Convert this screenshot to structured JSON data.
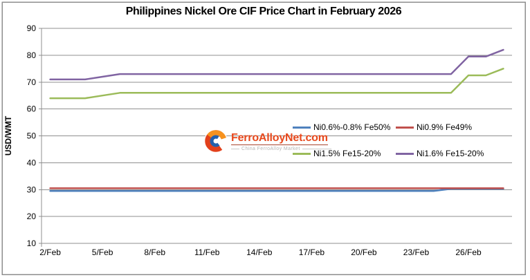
{
  "chart_data": {
    "type": "line",
    "title": "Philippines Nickel Ore CIF Price Chart in February 2026",
    "ylabel": "USD/WMT",
    "ylim": [
      10,
      90
    ],
    "y_ticks": [
      90,
      80,
      70,
      60,
      50,
      40,
      30,
      20,
      10
    ],
    "x_tick_labels": [
      "2/Feb",
      "5/Feb",
      "8/Feb",
      "11/Feb",
      "14/Feb",
      "17/Feb",
      "20/Feb",
      "23/Feb",
      "26/Feb"
    ],
    "x_categories": [
      "2/Feb",
      "3/Feb",
      "4/Feb",
      "5/Feb",
      "6/Feb",
      "7/Feb",
      "8/Feb",
      "9/Feb",
      "10/Feb",
      "11/Feb",
      "12/Feb",
      "13/Feb",
      "14/Feb",
      "15/Feb",
      "16/Feb",
      "17/Feb",
      "18/Feb",
      "19/Feb",
      "20/Feb",
      "21/Feb",
      "22/Feb",
      "23/Feb",
      "24/Feb",
      "25/Feb",
      "26/Feb",
      "27/Feb",
      "28/Feb"
    ],
    "grid": true,
    "grid_color": "#8F8F8F",
    "legend_position": "center-right",
    "series": [
      {
        "name": "Ni0.6%-0.8% Fe50%",
        "color": "#4F81BD",
        "values": [
          29.5,
          29.5,
          29.5,
          29.5,
          29.5,
          29.5,
          29.5,
          29.5,
          29.5,
          29.5,
          29.5,
          29.5,
          29.5,
          29.5,
          29.5,
          29.5,
          29.5,
          29.5,
          29.5,
          29.5,
          29.5,
          29.5,
          29.5,
          30.3,
          30.3,
          30.3,
          30.3
        ]
      },
      {
        "name": "Ni0.9% Fe49%",
        "color": "#C0504D",
        "values": [
          30.5,
          30.5,
          30.5,
          30.5,
          30.5,
          30.5,
          30.5,
          30.5,
          30.5,
          30.5,
          30.5,
          30.5,
          30.5,
          30.5,
          30.5,
          30.5,
          30.5,
          30.5,
          30.5,
          30.5,
          30.5,
          30.5,
          30.5,
          30.5,
          30.5,
          30.5,
          30.5
        ]
      },
      {
        "name": "Ni1.5% Fe15-20%",
        "color": "#9BBB59",
        "values": [
          64,
          64,
          64,
          65,
          66,
          66,
          66,
          66,
          66,
          66,
          66,
          66,
          66,
          66,
          66,
          66,
          66,
          66,
          66,
          66,
          66,
          66,
          66,
          66,
          72.5,
          72.5,
          75
        ]
      },
      {
        "name": "Ni1.6% Fe15-20%",
        "color": "#8064A2",
        "values": [
          71,
          71,
          71,
          72,
          73,
          73,
          73,
          73,
          73,
          73,
          73,
          73,
          73,
          73,
          73,
          73,
          73,
          73,
          73,
          73,
          73,
          73,
          73,
          73,
          79.5,
          79.5,
          82
        ]
      }
    ]
  },
  "watermark": {
    "brand": "FerroAlloyNet.com",
    "subtitle": "China FerroAlloy Market",
    "brand_color": "#E8491D",
    "underline_color": "#A8452E",
    "subtitle_color": "#B3B3B3",
    "logo_orange": "#F6921E",
    "logo_red": "#E2401B",
    "logo_blue": "#2160AD"
  }
}
